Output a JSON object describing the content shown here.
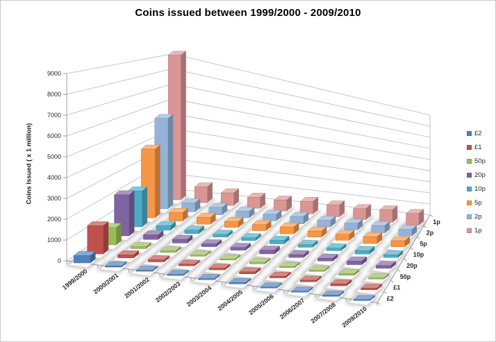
{
  "title": "Coins issued between 1999/2000 - 2009/2010",
  "chart_data": {
    "type": "bar",
    "subtype": "3d-column",
    "title": "Coins issued between 1999/2000 - 2009/2010",
    "xlabel": "",
    "ylabel": "Coins Issued ( x 1 million)",
    "ylim": [
      0,
      9000
    ],
    "y_ticks": [
      0,
      1000,
      2000,
      3000,
      4000,
      5000,
      6000,
      7000,
      8000,
      9000
    ],
    "gridlines": true,
    "legend_position": "right",
    "categories": [
      "1999/2000",
      "2000/2001",
      "2001/2002",
      "2002/2003",
      "2003/2004",
      "2004/2005",
      "2005/2006",
      "2006/2007",
      "2007/2008",
      "2009/2010"
    ],
    "depth_order_front_to_back": [
      "£2",
      "£1",
      "50p",
      "20p",
      "10p",
      "5p",
      "2p",
      "1p"
    ],
    "series": [
      {
        "name": "£2",
        "color": "#4F81BD",
        "values": [
          350,
          60,
          50,
          50,
          50,
          60,
          50,
          50,
          60,
          50
        ]
      },
      {
        "name": "£1",
        "color": "#C0504D",
        "values": [
          1400,
          150,
          100,
          80,
          80,
          100,
          80,
          80,
          100,
          80
        ]
      },
      {
        "name": "50p",
        "color": "#9BBB59",
        "values": [
          900,
          100,
          80,
          60,
          60,
          80,
          60,
          60,
          80,
          60
        ]
      },
      {
        "name": "20p",
        "color": "#8064A2",
        "values": [
          2200,
          250,
          200,
          150,
          150,
          200,
          150,
          150,
          200,
          150
        ]
      },
      {
        "name": "10p",
        "color": "#4BACC6",
        "values": [
          2000,
          250,
          200,
          150,
          150,
          200,
          150,
          150,
          200,
          150
        ]
      },
      {
        "name": "5p",
        "color": "#F79646",
        "values": [
          4000,
          500,
          400,
          350,
          350,
          400,
          350,
          350,
          400,
          350
        ]
      },
      {
        "name": "2p",
        "color": "#95B3D7",
        "values": [
          5500,
          550,
          450,
          400,
          400,
          450,
          400,
          400,
          450,
          400
        ]
      },
      {
        "name": "1p",
        "color": "#D99694",
        "values": [
          9200,
          1000,
          800,
          700,
          700,
          800,
          750,
          700,
          800,
          750
        ]
      }
    ]
  },
  "colors": {
    "grid": "#c6c6c6",
    "axis": "#9e9e9e",
    "tick_text": "#262626",
    "shadow": "#858585",
    "floor_tile": "#fdfdfd"
  }
}
